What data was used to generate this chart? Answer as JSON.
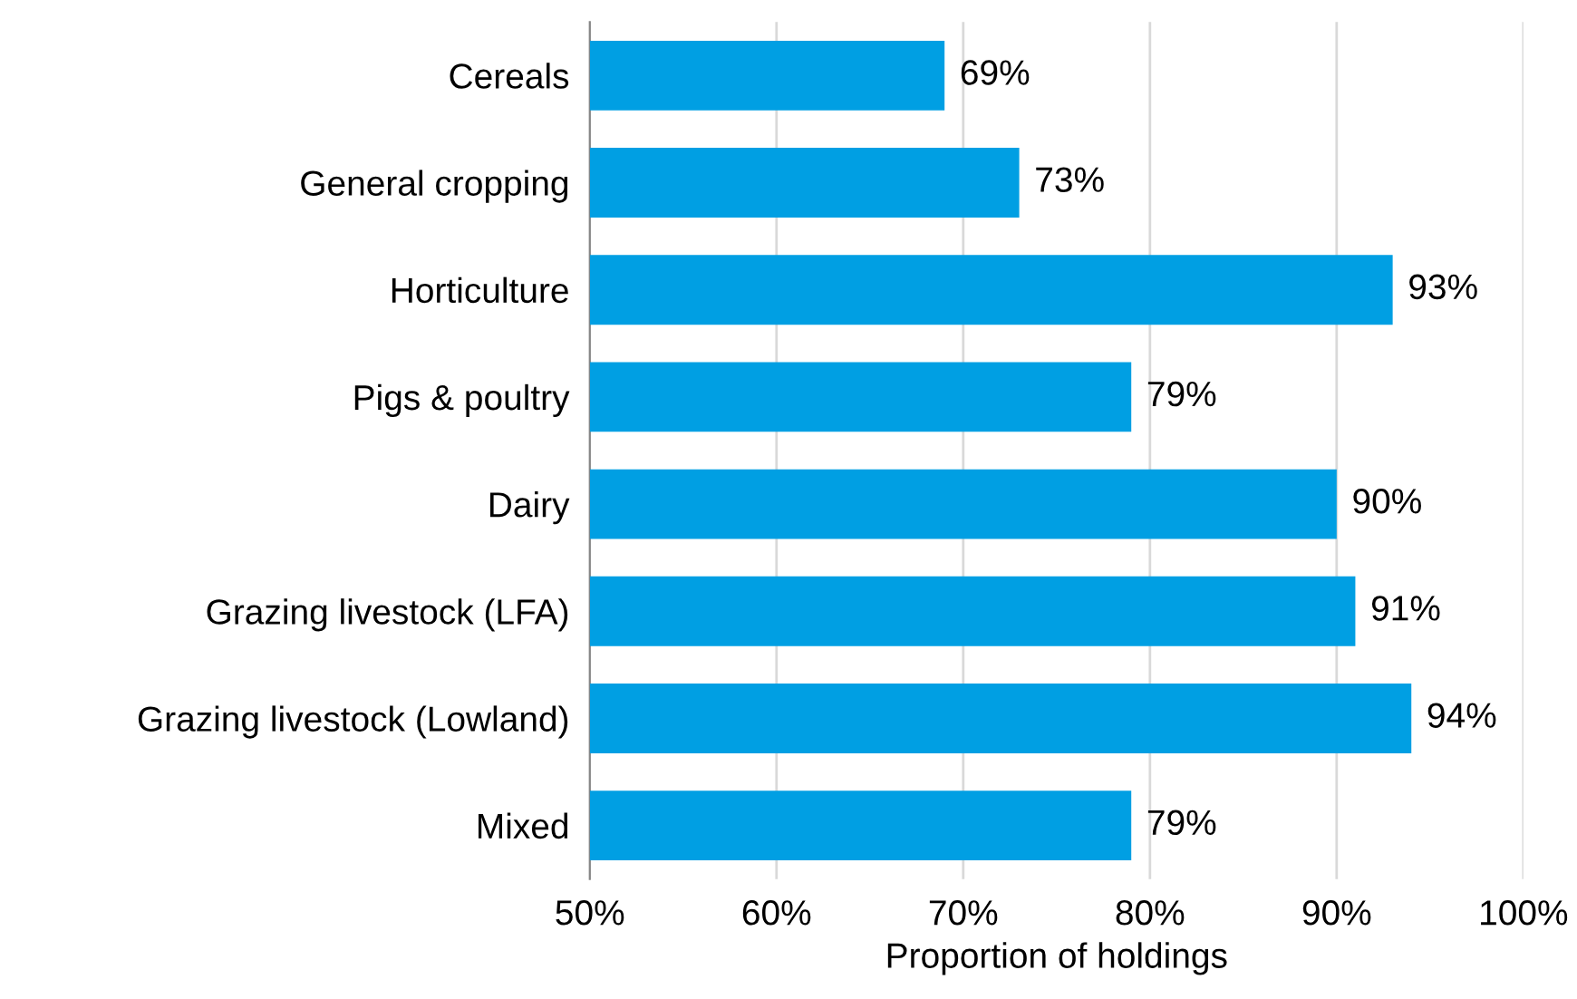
{
  "chart_data": {
    "type": "bar",
    "orientation": "horizontal",
    "xlabel": "Proportion of holdings",
    "categories": [
      "Cereals",
      "General cropping",
      "Horticulture",
      "Pigs & poultry",
      "Dairy",
      "Grazing livestock (LFA)",
      "Grazing livestock (Lowland)",
      "Mixed"
    ],
    "values": [
      69,
      73,
      93,
      79,
      90,
      91,
      94,
      79
    ],
    "value_labels": [
      "69%",
      "73%",
      "93%",
      "79%",
      "90%",
      "91%",
      "94%",
      "79%"
    ],
    "color": "#009fe3",
    "xlim": [
      50,
      100
    ],
    "xticks": [
      {
        "value": 50,
        "label": "50%"
      },
      {
        "value": 60,
        "label": "60%"
      },
      {
        "value": 70,
        "label": "70%"
      },
      {
        "value": 80,
        "label": "80%"
      },
      {
        "value": 90,
        "label": "90%"
      },
      {
        "value": 100,
        "label": "100%"
      }
    ],
    "grid": "x"
  }
}
